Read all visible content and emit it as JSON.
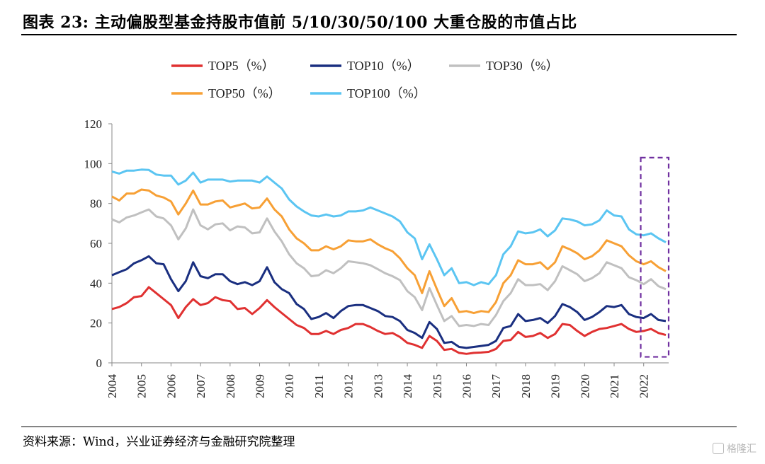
{
  "header": {
    "title": "图表 23:  主动偏股型基金持股市值前 5/10/30/50/100 大重仓股的市值占比"
  },
  "footer": {
    "source": "资料来源：Wind，兴业证券经济与金融研究院整理"
  },
  "watermark": {
    "text": "格隆汇"
  },
  "chart_data": {
    "type": "line",
    "xlabel": "",
    "ylabel": "",
    "ylim": [
      0,
      120
    ],
    "yticks": [
      "0",
      "20",
      "40",
      "60",
      "80",
      "100",
      "120"
    ],
    "xtick_labels": [
      "2004",
      "2005",
      "2006",
      "2007",
      "2008",
      "2009",
      "2010",
      "2011",
      "2012",
      "2013",
      "2014",
      "2015",
      "2016",
      "2017",
      "2018",
      "2019",
      "2020",
      "2021",
      "2022"
    ],
    "x_start_year": 2004,
    "x_end_year": 2022.75,
    "legend_position": "top",
    "highlight_box": {
      "from_year": 2021.9,
      "to_year": 2022.75,
      "y_from": 3,
      "y_to": 103,
      "color": "#7030a0"
    },
    "series": [
      {
        "name": "TOP5（%）",
        "color": "#e03131",
        "values": [
          27,
          28,
          30,
          33,
          33.5,
          38,
          35,
          32,
          29,
          22.5,
          28,
          32,
          29,
          30,
          33,
          31.5,
          31,
          27,
          27.5,
          24.5,
          27.5,
          31.5,
          28,
          25,
          22,
          19,
          17.5,
          14.5,
          14.5,
          16,
          14.5,
          16.5,
          17.5,
          19.5,
          19.5,
          18,
          16,
          14.5,
          15,
          13,
          10,
          9,
          7.5,
          13.5,
          11,
          6.5,
          7,
          5,
          4.5,
          5,
          5.2,
          5.5,
          7,
          11,
          11.5,
          15.5,
          13,
          13.5,
          15,
          12.5,
          14.5,
          19.5,
          19,
          16,
          13.5,
          15.5,
          17,
          17.5,
          18.5,
          19.5,
          17,
          15.5,
          16,
          17,
          15,
          14
        ]
      },
      {
        "name": "TOP10（%）",
        "color": "#1a2f80",
        "values": [
          44,
          45.5,
          47,
          50,
          51.5,
          53.5,
          50,
          49.5,
          42,
          36,
          41,
          50.5,
          43.5,
          42.5,
          44.5,
          44.5,
          41,
          39.5,
          40.5,
          39,
          41,
          48,
          40.5,
          37,
          35,
          29.5,
          27,
          22,
          23,
          25,
          22.5,
          26,
          28.5,
          29,
          29,
          27.5,
          26,
          23.5,
          23,
          21,
          16.5,
          15,
          12.5,
          20.5,
          17,
          10,
          10.5,
          8,
          7.5,
          8,
          8.5,
          9,
          11,
          17.5,
          18.5,
          24.5,
          21,
          21.5,
          22.5,
          20,
          23.5,
          29.5,
          28,
          25.5,
          21.5,
          23,
          25.5,
          28.5,
          28,
          29,
          24.5,
          23,
          22.5,
          24.5,
          21.5,
          21
        ]
      },
      {
        "name": "TOP30（%）",
        "color": "#c0c0c0",
        "values": [
          72,
          70.5,
          73,
          74,
          75.5,
          77,
          73.5,
          72.5,
          69,
          62,
          67.5,
          77,
          69,
          67,
          69.5,
          70,
          66.5,
          68.5,
          68,
          65,
          65.5,
          72.5,
          66,
          61,
          54.5,
          50,
          47.5,
          43.5,
          44,
          46.5,
          45,
          47.5,
          51,
          50.5,
          50,
          49,
          47,
          45,
          43.5,
          41.5,
          36,
          33,
          26.5,
          37.5,
          29,
          21,
          23.5,
          18.5,
          19,
          18.5,
          19.5,
          19,
          24,
          31,
          35,
          42,
          39,
          39,
          39.5,
          36.5,
          41,
          48.5,
          46.5,
          44.5,
          41,
          42.5,
          45,
          50.5,
          49,
          47.5,
          43,
          41.5,
          39.5,
          42,
          38.5,
          37
        ]
      },
      {
        "name": "TOP50（%）",
        "color": "#f7a035",
        "values": [
          83.5,
          81.5,
          85,
          85,
          87,
          86.5,
          84,
          83,
          81,
          74.5,
          80,
          86.5,
          79.5,
          79.5,
          81,
          81.5,
          78,
          79,
          80,
          77.5,
          78,
          82.5,
          77,
          73.5,
          67,
          62.5,
          60,
          56.5,
          56.5,
          58.5,
          57,
          58.5,
          61.5,
          61,
          61,
          62,
          59.5,
          57.5,
          56,
          52.5,
          47.5,
          44,
          35,
          46,
          37,
          28.5,
          32.5,
          25.5,
          26,
          25,
          26,
          25.5,
          30.5,
          40,
          44,
          51.5,
          49.5,
          49.5,
          50.5,
          47,
          50.5,
          58.5,
          57,
          55,
          52,
          53.5,
          56.5,
          61.5,
          60,
          58.5,
          54,
          51,
          49.5,
          51,
          48,
          46
        ]
      },
      {
        "name": "TOP100（%）",
        "color": "#5bc5f2",
        "values": [
          96,
          95,
          96.5,
          96.5,
          97,
          96.8,
          94.5,
          94,
          94,
          89.5,
          91.5,
          95.5,
          90.5,
          92,
          92,
          92,
          91,
          91.5,
          91.5,
          91.5,
          90.5,
          93.5,
          90.5,
          87.5,
          82,
          78.5,
          76,
          74,
          73.5,
          74.5,
          73.5,
          74,
          76,
          76,
          76.5,
          78,
          76.5,
          75,
          73.5,
          71,
          65.5,
          62.5,
          52,
          59.5,
          52,
          44,
          47.5,
          40,
          40.5,
          39,
          40.5,
          39.5,
          44,
          54.5,
          58.5,
          66,
          65,
          65.5,
          67,
          63.5,
          66.5,
          72.5,
          72,
          71,
          69,
          69.5,
          71.5,
          76.5,
          74,
          73.5,
          67,
          64.5,
          64,
          65,
          62.5,
          60.5
        ]
      }
    ]
  }
}
